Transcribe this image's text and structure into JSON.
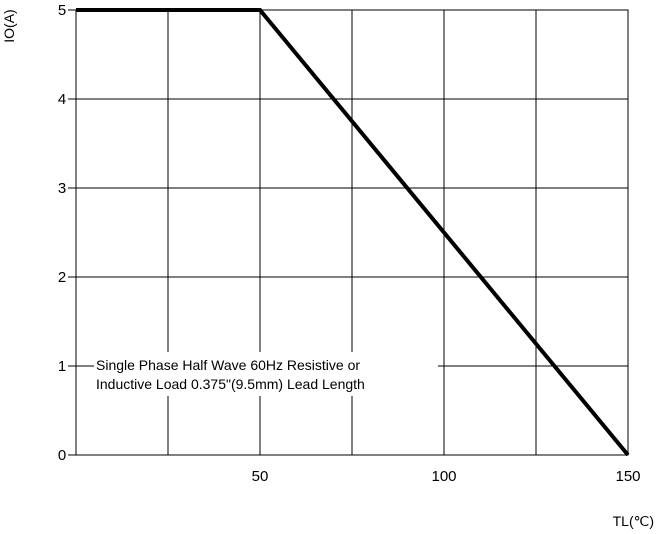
{
  "chart_data": {
    "type": "line",
    "title": "",
    "xlabel": "TL(℃)",
    "ylabel": "IO(A)",
    "xlim": [
      0,
      150
    ],
    "ylim": [
      0,
      5
    ],
    "x_ticks": [
      50,
      100,
      150
    ],
    "y_ticks": [
      0,
      1,
      2,
      3,
      4,
      5
    ],
    "grid": true,
    "series": [
      {
        "x": [
          0,
          50,
          150
        ],
        "y": [
          5,
          5,
          0
        ]
      }
    ],
    "annotation": [
      "Single Phase Half Wave 60Hz  Resistive or",
      "Inductive Load 0.375\"(9.5mm) Lead Length"
    ],
    "colors": {
      "line": "#000000",
      "grid": "#000000"
    }
  }
}
